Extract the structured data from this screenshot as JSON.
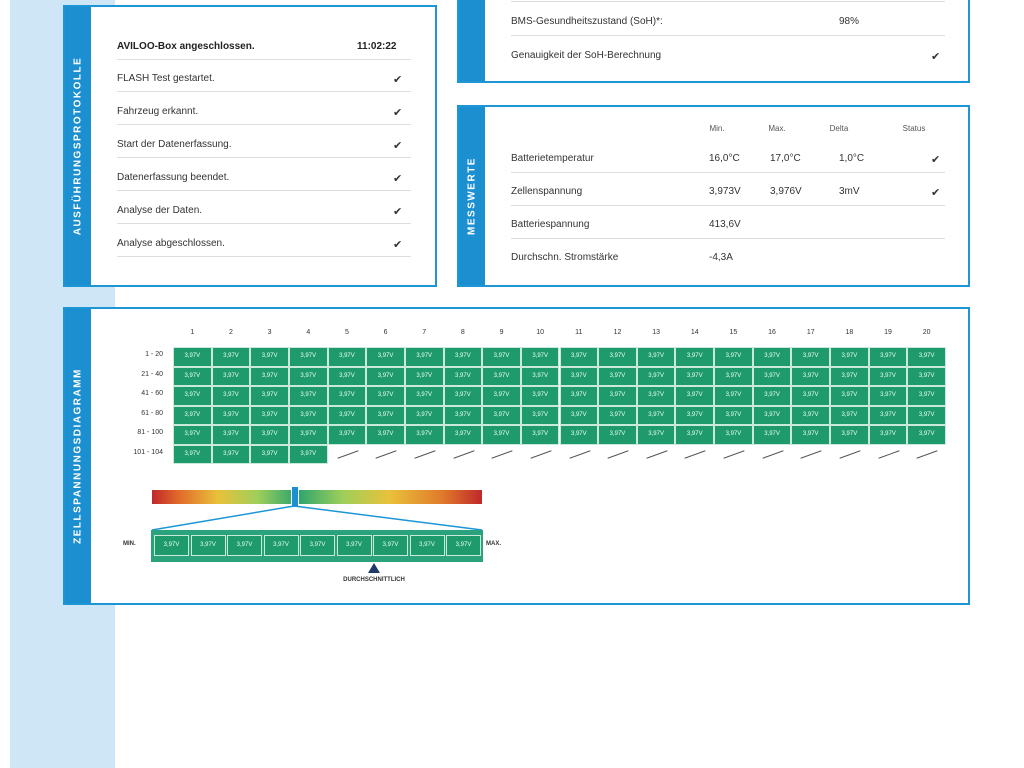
{
  "protocol": {
    "label": "AUSFÜHRUNGSPROTOKOLLE",
    "header": {
      "text": "AVILOO-Box angeschlossen.",
      "time": "11:02:22"
    },
    "rows": [
      {
        "text": "FLASH Test gestartet.",
        "status": "✔"
      },
      {
        "text": "Fahrzeug erkannt.",
        "status": "✔"
      },
      {
        "text": "Start der Datenerfassung.",
        "status": "✔"
      },
      {
        "text": "Datenerfassung beendet.",
        "status": "✔"
      },
      {
        "text": "Analyse der Daten.",
        "status": "✔"
      },
      {
        "text": "Analyse abgeschlossen.",
        "status": "✔"
      }
    ]
  },
  "soh": {
    "rows": [
      {
        "text": "BMS-Gesundheitszustand (SoH)*:",
        "value": "98%"
      },
      {
        "text": "Genauigkeit der SoH-Berechnung",
        "status": "✔"
      }
    ]
  },
  "measurements": {
    "label": "MESSWERTE",
    "columns": [
      "Min.",
      "Max.",
      "Delta",
      "Status"
    ],
    "rows": [
      {
        "name": "Batterietemperatur",
        "cells": [
          "16,0°C",
          "17,0°C",
          "1,0°C",
          "✔"
        ]
      },
      {
        "name": "Zellenspannung",
        "cells": [
          "3,973V",
          "3,976V",
          "3mV",
          "✔"
        ]
      },
      {
        "name": "Batteriespannung",
        "cells": [
          "413,6V"
        ]
      },
      {
        "name": "Durchschn. Stromstärke",
        "cells": [
          "-4,3A"
        ]
      }
    ]
  },
  "diagram": {
    "label": "ZELLSPANNUNGSDIAGRAMM",
    "columns": [
      1,
      2,
      3,
      4,
      5,
      6,
      7,
      8,
      9,
      10,
      11,
      12,
      13,
      14,
      15,
      16,
      17,
      18,
      19,
      20
    ],
    "rows": [
      {
        "label": "1 - 20",
        "cells": [
          "3,97V",
          "3,97V",
          "3,97V",
          "3,97V",
          "3,97V",
          "3,97V",
          "3,97V",
          "3,97V",
          "3,97V",
          "3,97V",
          "3,97V",
          "3,97V",
          "3,97V",
          "3,97V",
          "3,97V",
          "3,97V",
          "3,97V",
          "3,97V",
          "3,97V",
          "3,97V"
        ]
      },
      {
        "label": "21 - 40",
        "cells": [
          "3,97V",
          "3,97V",
          "3,97V",
          "3,97V",
          "3,97V",
          "3,97V",
          "3,97V",
          "3,97V",
          "3,97V",
          "3,97V",
          "3,97V",
          "3,97V",
          "3,97V",
          "3,97V",
          "3,97V",
          "3,97V",
          "3,97V",
          "3,97V",
          "3,97V",
          "3,97V"
        ]
      },
      {
        "label": "41 - 60",
        "cells": [
          "3,97V",
          "3,97V",
          "3,97V",
          "3,97V",
          "3,97V",
          "3,97V",
          "3,97V",
          "3,97V",
          "3,97V",
          "3,97V",
          "3,97V",
          "3,97V",
          "3,97V",
          "3,97V",
          "3,97V",
          "3,97V",
          "3,97V",
          "3,97V",
          "3,97V",
          "3,97V"
        ]
      },
      {
        "label": "61 - 80",
        "cells": [
          "3,97V",
          "3,97V",
          "3,97V",
          "3,97V",
          "3,97V",
          "3,97V",
          "3,97V",
          "3,97V",
          "3,97V",
          "3,97V",
          "3,97V",
          "3,97V",
          "3,97V",
          "3,97V",
          "3,97V",
          "3,97V",
          "3,97V",
          "3,97V",
          "3,97V",
          "3,97V"
        ]
      },
      {
        "label": "81 - 100",
        "cells": [
          "3,97V",
          "3,97V",
          "3,97V",
          "3,97V",
          "3,97V",
          "3,97V",
          "3,97V",
          "3,97V",
          "3,97V",
          "3,97V",
          "3,97V",
          "3,97V",
          "3,97V",
          "3,97V",
          "3,97V",
          "3,97V",
          "3,97V",
          "3,97V",
          "3,97V",
          "3,97V"
        ]
      },
      {
        "label": "101 - 104",
        "cells": [
          "3,97V",
          "3,97V",
          "3,97V",
          "3,97V"
        ]
      }
    ],
    "scale": {
      "min": "MIN.",
      "max": "MAX.",
      "cells": [
        "3,97V",
        "3,97V",
        "3,97V",
        "3,97V",
        "3,97V",
        "3,97V",
        "3,97V",
        "3,97V",
        "3,97V"
      ],
      "marker": "DURCHSCHNITTLICH"
    }
  }
}
